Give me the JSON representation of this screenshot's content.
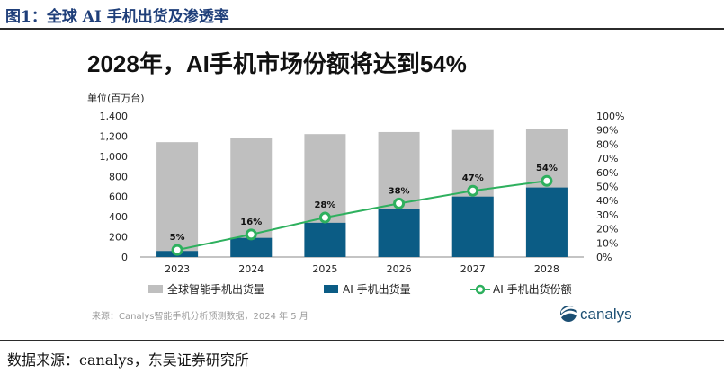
{
  "figure_label": "图1：全球 AI 手机出货及渗透率",
  "footer_source": "数据来源：canalys，东吴证券研究所",
  "chart_data": {
    "type": "bar",
    "title": "2028年，AI手机市场份额将达到54%",
    "ylabel": "单位(百万台)",
    "categories": [
      "2023",
      "2024",
      "2025",
      "2026",
      "2027",
      "2028"
    ],
    "ylim": [
      0,
      1400
    ],
    "yticks": [
      "0",
      "200",
      "400",
      "600",
      "800",
      "1,000",
      "1,200",
      "1,400"
    ],
    "y2lim": [
      0,
      100
    ],
    "y2ticks": [
      "0%",
      "10%",
      "20%",
      "30%",
      "40%",
      "50%",
      "60%",
      "70%",
      "80%",
      "90%",
      "100%"
    ],
    "series": [
      {
        "name": "全球智能手机出货量",
        "type": "bar",
        "color": "#bfbfbf",
        "values": [
          1140,
          1180,
          1220,
          1240,
          1260,
          1270
        ]
      },
      {
        "name": "AI 手机出货量",
        "type": "bar",
        "color": "#0b5c85",
        "values": [
          60,
          190,
          340,
          480,
          600,
          690
        ]
      },
      {
        "name": "AI 手机出货份额",
        "type": "line",
        "axis": "right",
        "color": "#2eb05e",
        "values": [
          5,
          16,
          28,
          38,
          47,
          54
        ],
        "labels": [
          "5%",
          "16%",
          "28%",
          "38%",
          "47%",
          "54%"
        ]
      }
    ],
    "grid": false,
    "legend": "bottom",
    "note": "来源：Canalys智能手机分析预测数据，2024 年 5 月",
    "brand": "canalys"
  }
}
